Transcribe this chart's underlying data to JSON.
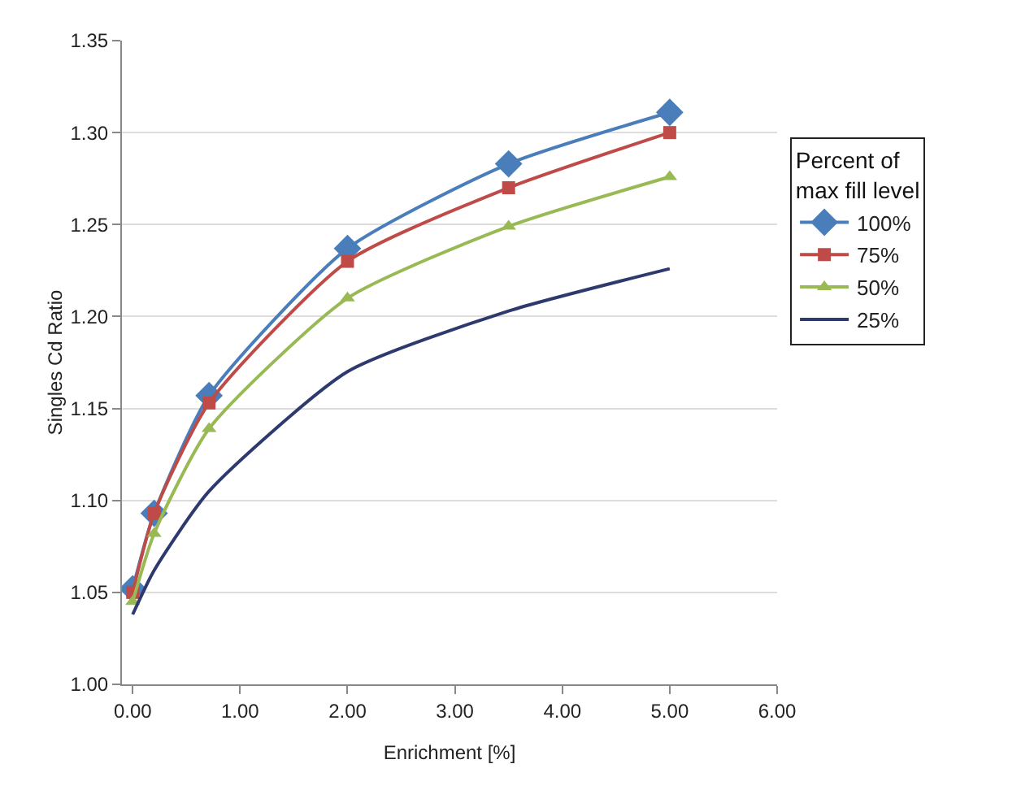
{
  "chart_data": {
    "type": "line",
    "xlabel": "Enrichment [%]",
    "ylabel": "Singles Cd Ratio",
    "legend_title": "Percent of max fill level",
    "x": [
      0,
      0.2,
      0.711,
      2,
      3.5,
      5
    ],
    "series": [
      {
        "name": "100%",
        "color": "#4a7ebb",
        "marker": "diamond",
        "values": [
          1.052,
          1.093,
          1.157,
          1.237,
          1.283,
          1.311
        ]
      },
      {
        "name": "75%",
        "color": "#be4b48",
        "marker": "square",
        "values": [
          1.05,
          1.093,
          1.153,
          1.23,
          1.27,
          1.3
        ]
      },
      {
        "name": "50%",
        "color": "#98b954",
        "marker": "triangle",
        "values": [
          1.045,
          1.082,
          1.139,
          1.21,
          1.249,
          1.276
        ]
      },
      {
        "name": "25%",
        "color": "#2e3a6e",
        "marker": "none",
        "values": [
          1.038,
          1.062,
          1.105,
          1.17,
          1.203,
          1.226
        ]
      }
    ],
    "xlim": [
      -0.1,
      6
    ],
    "xticks": [
      {
        "value": 0,
        "label": "0.00"
      },
      {
        "value": 1,
        "label": "1.00"
      },
      {
        "value": 2,
        "label": "2.00"
      },
      {
        "value": 3,
        "label": "3.00"
      },
      {
        "value": 4,
        "label": "4.00"
      },
      {
        "value": 5,
        "label": "5.00"
      },
      {
        "value": 6,
        "label": "6.00"
      }
    ],
    "ylim": [
      1,
      1.35
    ],
    "yticks": [
      {
        "value": 1,
        "label": "1.00"
      },
      {
        "value": 1.05,
        "label": "1.05"
      },
      {
        "value": 1.1,
        "label": "1.10"
      },
      {
        "value": 1.15,
        "label": "1.15"
      },
      {
        "value": 1.2,
        "label": "1.20"
      },
      {
        "value": 1.25,
        "label": "1.25"
      },
      {
        "value": 1.3,
        "label": "1.30"
      },
      {
        "value": 1.35,
        "label": "1.35"
      }
    ],
    "grid": "y",
    "legend": "right"
  }
}
